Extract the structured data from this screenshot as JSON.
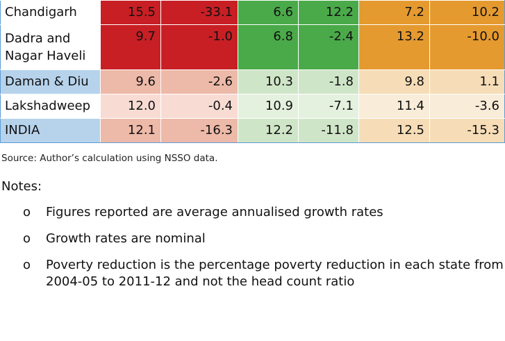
{
  "colors": {
    "red_strong": "#c81f25",
    "red_light": "#edb9a8",
    "red_faint": "#f8dcd4",
    "green_strong": "#4aaa49",
    "green_light": "#cfe5c7",
    "green_faint": "#e5f1df",
    "orange_strong": "#e59a2f",
    "orange_light": "#f6ddb7",
    "orange_faint": "#f9ecd8",
    "blue_name": "#b7d3ec",
    "white": "#ffffff",
    "border_blue": "#5b9bd5"
  },
  "table": {
    "rows": [
      {
        "name": "Chandigarh",
        "values": [
          "15.5",
          "-33.1",
          "6.6",
          "12.2",
          "7.2",
          "10.2"
        ]
      },
      {
        "name": "Dadra and Nagar Haveli",
        "values": [
          "9.7",
          "-1.0",
          "6.8",
          "-2.4",
          "13.2",
          "-10.0"
        ]
      },
      {
        "name": "Daman & Diu",
        "values": [
          "9.6",
          "-2.6",
          "10.3",
          "-1.8",
          "9.8",
          "1.1"
        ]
      },
      {
        "name": "Lakshadweep",
        "values": [
          "12.0",
          "-0.4",
          "10.9",
          "-7.1",
          "11.4",
          "-3.6"
        ]
      },
      {
        "name": "INDIA",
        "values": [
          "12.1",
          "-16.3",
          "12.2",
          "-11.8",
          "12.5",
          "-15.3"
        ]
      }
    ]
  },
  "source": "Source: Author’s calculation using NSSO data.",
  "notes": {
    "title": "Notes:",
    "bullet": "o",
    "items": [
      "Figures reported are average annualised growth rates",
      "Growth rates are nominal",
      "Poverty reduction is the percentage poverty reduction in each state from 2004-05 to 2011-12 and not the head count ratio"
    ]
  }
}
